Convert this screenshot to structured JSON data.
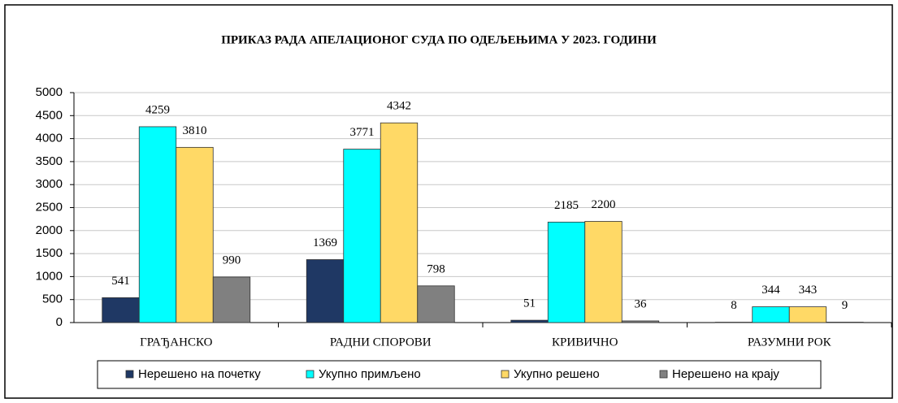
{
  "chart_data": {
    "type": "bar",
    "title": "ПРИКАЗ РАДА АПЕЛАЦИОНОГ СУДА ПО ОДЕЉЕЊИМА У 2023. ГОДИНИ",
    "categories": [
      "ГРАЂАНСКО",
      "РАДНИ СПОРОВИ",
      "КРИВИЧНО",
      "РАЗУМНИ РОК"
    ],
    "series": [
      {
        "name": "Нерешено на почетку",
        "color": "#1f3864",
        "values": [
          541,
          1369,
          51,
          8
        ]
      },
      {
        "name": "Укупно примљено",
        "color": "#00ffff",
        "values": [
          4259,
          3771,
          2185,
          344
        ]
      },
      {
        "name": "Укупно решено",
        "color": "#ffd966",
        "values": [
          3810,
          4342,
          2200,
          343
        ]
      },
      {
        "name": "Нерешено на крају",
        "color": "#808080",
        "values": [
          990,
          798,
          36,
          9
        ]
      }
    ],
    "ylim": [
      0,
      5000
    ],
    "yticks": [
      0,
      500,
      1000,
      1500,
      2000,
      2500,
      3000,
      3500,
      4000,
      4500,
      5000
    ],
    "grid": true,
    "legend": "bottom"
  }
}
